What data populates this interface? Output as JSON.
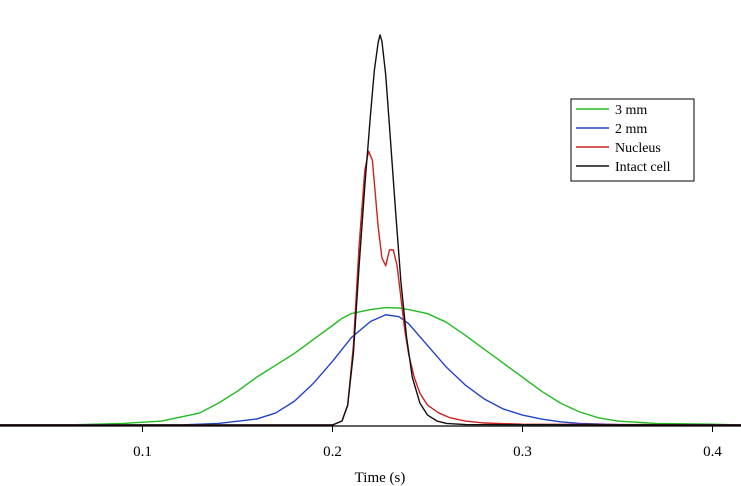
{
  "chart_data": {
    "type": "line",
    "title": "",
    "xlabel": "Time (s)",
    "ylabel": "",
    "xlim": [
      0.025,
      0.415
    ],
    "ylim": [
      0,
      1.0
    ],
    "xticks": [
      0.1,
      0.2,
      0.3,
      0.4
    ],
    "xtick_labels": [
      "0.1",
      "0.2",
      "0.3",
      "0.4"
    ],
    "y_axis_shown": false,
    "grid": false,
    "legend_position": "top-right",
    "series": [
      {
        "name": "3 mm",
        "color": "#22bb22",
        "points": [
          [
            0.025,
            0.0
          ],
          [
            0.06,
            0.0
          ],
          [
            0.09,
            0.004
          ],
          [
            0.11,
            0.01
          ],
          [
            0.13,
            0.03
          ],
          [
            0.14,
            0.055
          ],
          [
            0.15,
            0.085
          ],
          [
            0.16,
            0.12
          ],
          [
            0.17,
            0.15
          ],
          [
            0.18,
            0.18
          ],
          [
            0.19,
            0.215
          ],
          [
            0.2,
            0.25
          ],
          [
            0.205,
            0.268
          ],
          [
            0.21,
            0.28
          ],
          [
            0.22,
            0.29
          ],
          [
            0.228,
            0.295
          ],
          [
            0.235,
            0.294
          ],
          [
            0.24,
            0.29
          ],
          [
            0.25,
            0.28
          ],
          [
            0.26,
            0.258
          ],
          [
            0.27,
            0.225
          ],
          [
            0.28,
            0.19
          ],
          [
            0.29,
            0.155
          ],
          [
            0.3,
            0.12
          ],
          [
            0.31,
            0.085
          ],
          [
            0.32,
            0.055
          ],
          [
            0.33,
            0.033
          ],
          [
            0.34,
            0.018
          ],
          [
            0.35,
            0.01
          ],
          [
            0.37,
            0.004
          ],
          [
            0.4,
            0.002
          ],
          [
            0.415,
            0.0
          ]
        ]
      },
      {
        "name": "2 mm",
        "color": "#2244cc",
        "points": [
          [
            0.025,
            0.0
          ],
          [
            0.12,
            0.0
          ],
          [
            0.14,
            0.004
          ],
          [
            0.16,
            0.015
          ],
          [
            0.17,
            0.03
          ],
          [
            0.18,
            0.06
          ],
          [
            0.19,
            0.105
          ],
          [
            0.2,
            0.16
          ],
          [
            0.21,
            0.22
          ],
          [
            0.22,
            0.26
          ],
          [
            0.228,
            0.277
          ],
          [
            0.235,
            0.272
          ],
          [
            0.24,
            0.255
          ],
          [
            0.25,
            0.2
          ],
          [
            0.26,
            0.145
          ],
          [
            0.27,
            0.1
          ],
          [
            0.28,
            0.065
          ],
          [
            0.29,
            0.04
          ],
          [
            0.3,
            0.025
          ],
          [
            0.31,
            0.015
          ],
          [
            0.32,
            0.008
          ],
          [
            0.33,
            0.004
          ],
          [
            0.35,
            0.001
          ],
          [
            0.415,
            0.0
          ]
        ]
      },
      {
        "name": "Nucleus",
        "color": "#cc2222",
        "points": [
          [
            0.025,
            0.0
          ],
          [
            0.2,
            0.0
          ],
          [
            0.205,
            0.01
          ],
          [
            0.208,
            0.05
          ],
          [
            0.211,
            0.2
          ],
          [
            0.214,
            0.45
          ],
          [
            0.217,
            0.64
          ],
          [
            0.219,
            0.688
          ],
          [
            0.221,
            0.665
          ],
          [
            0.224,
            0.5
          ],
          [
            0.226,
            0.42
          ],
          [
            0.228,
            0.4
          ],
          [
            0.23,
            0.44
          ],
          [
            0.232,
            0.44
          ],
          [
            0.234,
            0.4
          ],
          [
            0.236,
            0.32
          ],
          [
            0.238,
            0.24
          ],
          [
            0.24,
            0.18
          ],
          [
            0.243,
            0.12
          ],
          [
            0.246,
            0.08
          ],
          [
            0.25,
            0.05
          ],
          [
            0.256,
            0.03
          ],
          [
            0.262,
            0.018
          ],
          [
            0.27,
            0.01
          ],
          [
            0.28,
            0.005
          ],
          [
            0.3,
            0.002
          ],
          [
            0.415,
            0.0
          ]
        ]
      },
      {
        "name": "Intact cell",
        "color": "#111111",
        "points": [
          [
            0.025,
            0.0
          ],
          [
            0.2,
            0.0
          ],
          [
            0.205,
            0.01
          ],
          [
            0.208,
            0.05
          ],
          [
            0.211,
            0.18
          ],
          [
            0.214,
            0.4
          ],
          [
            0.217,
            0.6
          ],
          [
            0.22,
            0.78
          ],
          [
            0.222,
            0.89
          ],
          [
            0.224,
            0.96
          ],
          [
            0.225,
            0.98
          ],
          [
            0.226,
            0.965
          ],
          [
            0.228,
            0.88
          ],
          [
            0.23,
            0.75
          ],
          [
            0.233,
            0.55
          ],
          [
            0.236,
            0.36
          ],
          [
            0.239,
            0.22
          ],
          [
            0.242,
            0.12
          ],
          [
            0.246,
            0.055
          ],
          [
            0.25,
            0.025
          ],
          [
            0.255,
            0.01
          ],
          [
            0.26,
            0.004
          ],
          [
            0.27,
            0.001
          ],
          [
            0.415,
            0.0
          ]
        ]
      }
    ]
  }
}
